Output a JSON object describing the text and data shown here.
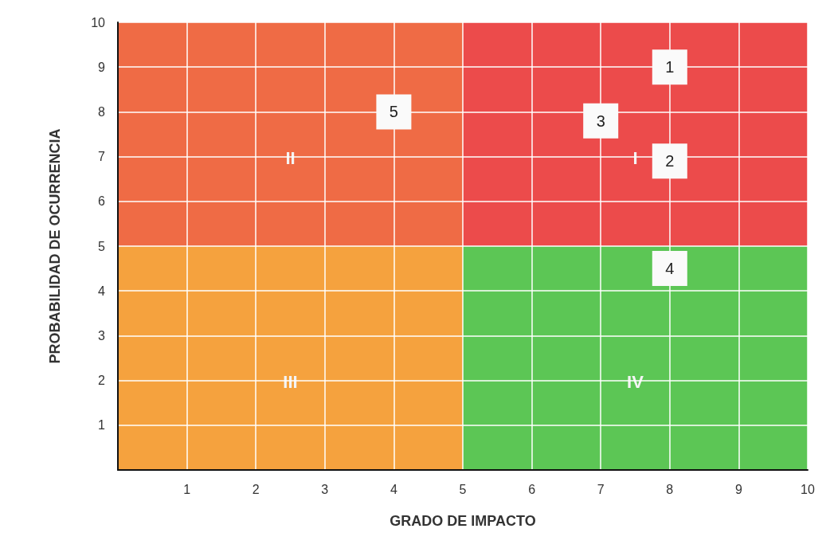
{
  "chart_data": {
    "type": "scatter",
    "xlabel": "GRADO DE IMPACTO",
    "ylabel": "PROBABILIDAD DE OCURRENCIA",
    "xlim": [
      0,
      10
    ],
    "xticks": [
      1,
      2,
      3,
      4,
      5,
      6,
      7,
      8,
      9,
      10
    ],
    "ylim": [
      0,
      10
    ],
    "yticks": [
      1,
      2,
      3,
      4,
      5,
      6,
      7,
      8,
      9,
      10
    ],
    "grid": true,
    "marker": "square",
    "annotations": [
      "II",
      "I",
      "III",
      "IV"
    ],
    "series": [
      {
        "name": "1",
        "color": "#fafafa",
        "x": [
          8
        ],
        "values": [
          9
        ]
      },
      {
        "name": "2",
        "color": "#fafafa",
        "x": [
          8
        ],
        "values": [
          6.9
        ]
      },
      {
        "name": "3",
        "color": "#fafafa",
        "x": [
          7
        ],
        "values": [
          7.8
        ]
      },
      {
        "name": "4",
        "color": "#fafafa",
        "x": [
          8
        ],
        "values": [
          4.5
        ]
      },
      {
        "name": "5",
        "color": "#fafafa",
        "x": [
          4
        ],
        "values": [
          8
        ]
      }
    ]
  }
}
